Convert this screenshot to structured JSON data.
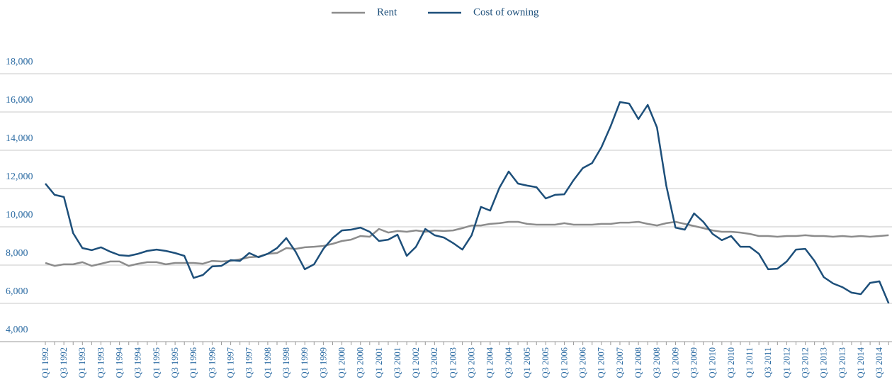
{
  "chart_data": {
    "type": "line",
    "categories": [
      "Q1 1992",
      null,
      "Q3 1992",
      null,
      "Q1 1993",
      null,
      "Q3 1993",
      null,
      "Q1 1994",
      null,
      "Q3 1994",
      null,
      "Q1 1995",
      null,
      "Q3 1995",
      null,
      "Q1 1996",
      null,
      "Q3 1996",
      null,
      "Q1 1997",
      null,
      "Q3 1997",
      null,
      "Q1 1998",
      null,
      "Q3 1998",
      null,
      "Q1 1999",
      null,
      "Q3 1999",
      null,
      "Q1 2000",
      null,
      "Q3 2000",
      null,
      "Q1 2001",
      null,
      "Q3 2001",
      null,
      "Q1 2002",
      null,
      "Q3 2002",
      null,
      "Q1 2003",
      null,
      "Q3 2003",
      null,
      "Q1 2004",
      null,
      "Q3 2004",
      null,
      "Q1 2005",
      null,
      "Q3 2005",
      null,
      "Q1 2006",
      null,
      "Q3 2006",
      null,
      "Q1 2007",
      null,
      "Q3 2007",
      null,
      "Q1 2008",
      null,
      "Q3 2008",
      null,
      "Q1 2009",
      null,
      "Q3 2009",
      null,
      "Q1 2010",
      null,
      "Q3 2010",
      null,
      "Q1 2011",
      null,
      "Q3 2011",
      null,
      "Q1 2012",
      null,
      "Q3 2012",
      null,
      "Q1 2013",
      null,
      "Q3 2013",
      null,
      "Q1 2014",
      null,
      "Q3 2014",
      null
    ],
    "series": [
      {
        "name": "Rent",
        "color": "#8c8c8c",
        "values": [
          8110,
          7960,
          8040,
          8040,
          8150,
          7960,
          8070,
          8190,
          8190,
          7960,
          8070,
          8150,
          8150,
          8040,
          8110,
          8110,
          8110,
          8070,
          8220,
          8190,
          8220,
          8300,
          8410,
          8440,
          8590,
          8630,
          8890,
          8850,
          8930,
          8960,
          9000,
          9110,
          9260,
          9330,
          9520,
          9480,
          9890,
          9700,
          9780,
          9740,
          9810,
          9740,
          9810,
          9780,
          9810,
          9930,
          10070,
          10070,
          10150,
          10190,
          10260,
          10260,
          10150,
          10110,
          10110,
          10110,
          10190,
          10110,
          10110,
          10110,
          10150,
          10150,
          10220,
          10220,
          10260,
          10150,
          10070,
          10190,
          10260,
          10150,
          10040,
          9930,
          9810,
          9740,
          9740,
          9700,
          9630,
          9520,
          9520,
          9480,
          9520,
          9520,
          9560,
          9520,
          9520,
          9480,
          9520,
          9480,
          9520,
          9480,
          9520,
          9560
        ]
      },
      {
        "name": "Cost of owning",
        "color": "#1d4f7a",
        "values": [
          12260,
          11670,
          11560,
          9670,
          8890,
          8780,
          8930,
          8700,
          8520,
          8480,
          8590,
          8740,
          8810,
          8740,
          8630,
          8480,
          7330,
          7480,
          7930,
          7960,
          8260,
          8220,
          8630,
          8410,
          8590,
          8890,
          9410,
          8700,
          7780,
          8040,
          8850,
          9410,
          9810,
          9850,
          9960,
          9740,
          9260,
          9330,
          9590,
          8480,
          8960,
          9890,
          9560,
          9440,
          9150,
          8810,
          9560,
          11040,
          10850,
          12040,
          12890,
          12260,
          12150,
          12070,
          11480,
          11670,
          11700,
          12440,
          13070,
          13330,
          14150,
          15260,
          16520,
          16440,
          15630,
          16370,
          15190,
          12150,
          9960,
          9850,
          10700,
          10260,
          9630,
          9300,
          9520,
          8960,
          8960,
          8590,
          7780,
          7810,
          8190,
          8810,
          8850,
          8220,
          7370,
          7040,
          6850,
          6560,
          6480,
          7070,
          7150,
          6000
        ]
      }
    ],
    "ylim": [
      4000,
      18000
    ],
    "yticks": [
      {
        "value": 4000,
        "label": "4,000"
      },
      {
        "value": 6000,
        "label": "6,000"
      },
      {
        "value": 8000,
        "label": "8,000"
      },
      {
        "value": 10000,
        "label": "10,000"
      },
      {
        "value": 12000,
        "label": "12,000"
      },
      {
        "value": 14000,
        "label": "14,000"
      },
      {
        "value": 16000,
        "label": "16,000"
      },
      {
        "value": 18000,
        "label": "18,000"
      }
    ],
    "grid": true,
    "legend": "top"
  }
}
